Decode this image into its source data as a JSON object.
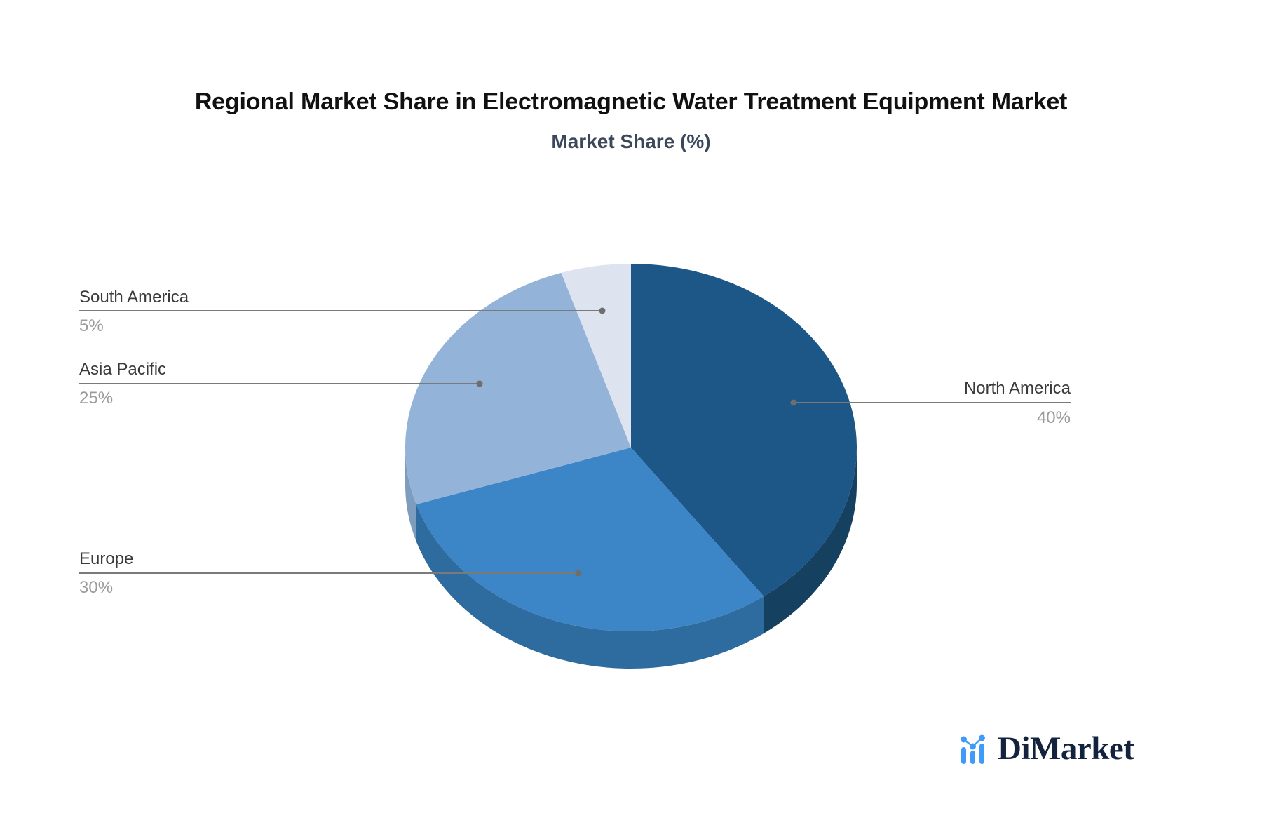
{
  "page": {
    "background": "#ffffff"
  },
  "header": {
    "title": "Regional Market Share in Electromagnetic Water Treatment Equipment Market",
    "subtitle": "Market Share (%)"
  },
  "chart_data": {
    "type": "pie",
    "style": "3d",
    "title": "Regional Market Share in Electromagnetic Water Treatment Equipment Market",
    "subtitle": "Market Share (%)",
    "unit": "%",
    "start_angle_deg": 0,
    "direction": "clockwise",
    "legend_position": "callout-labels",
    "labels": [
      "North America",
      "Europe",
      "Asia Pacific",
      "South America"
    ],
    "values": [
      40,
      30,
      25,
      5
    ],
    "colors": [
      "#1d5787",
      "#3c85c7",
      "#93b3d8",
      "#dde4f0"
    ],
    "side_colors": [
      "#15405f",
      "#2e6b9f",
      "#7e9cbd",
      "#c3cede"
    ],
    "callout_line_color": "#7a7a7a",
    "callout_dot_color": "#6e6e6e",
    "callouts": {
      "north_america": {
        "label": "North America",
        "pct": "40%"
      },
      "europe": {
        "label": "Europe",
        "pct": "30%"
      },
      "asia_pacific": {
        "label": "Asia Pacific",
        "pct": "25%"
      },
      "south_america": {
        "label": "South America",
        "pct": "5%"
      }
    }
  },
  "logo": {
    "text": "DiMarket",
    "icon": "bar-line-chart-icon",
    "icon_color": "#3f9bf7",
    "text_color": "#13233e"
  }
}
